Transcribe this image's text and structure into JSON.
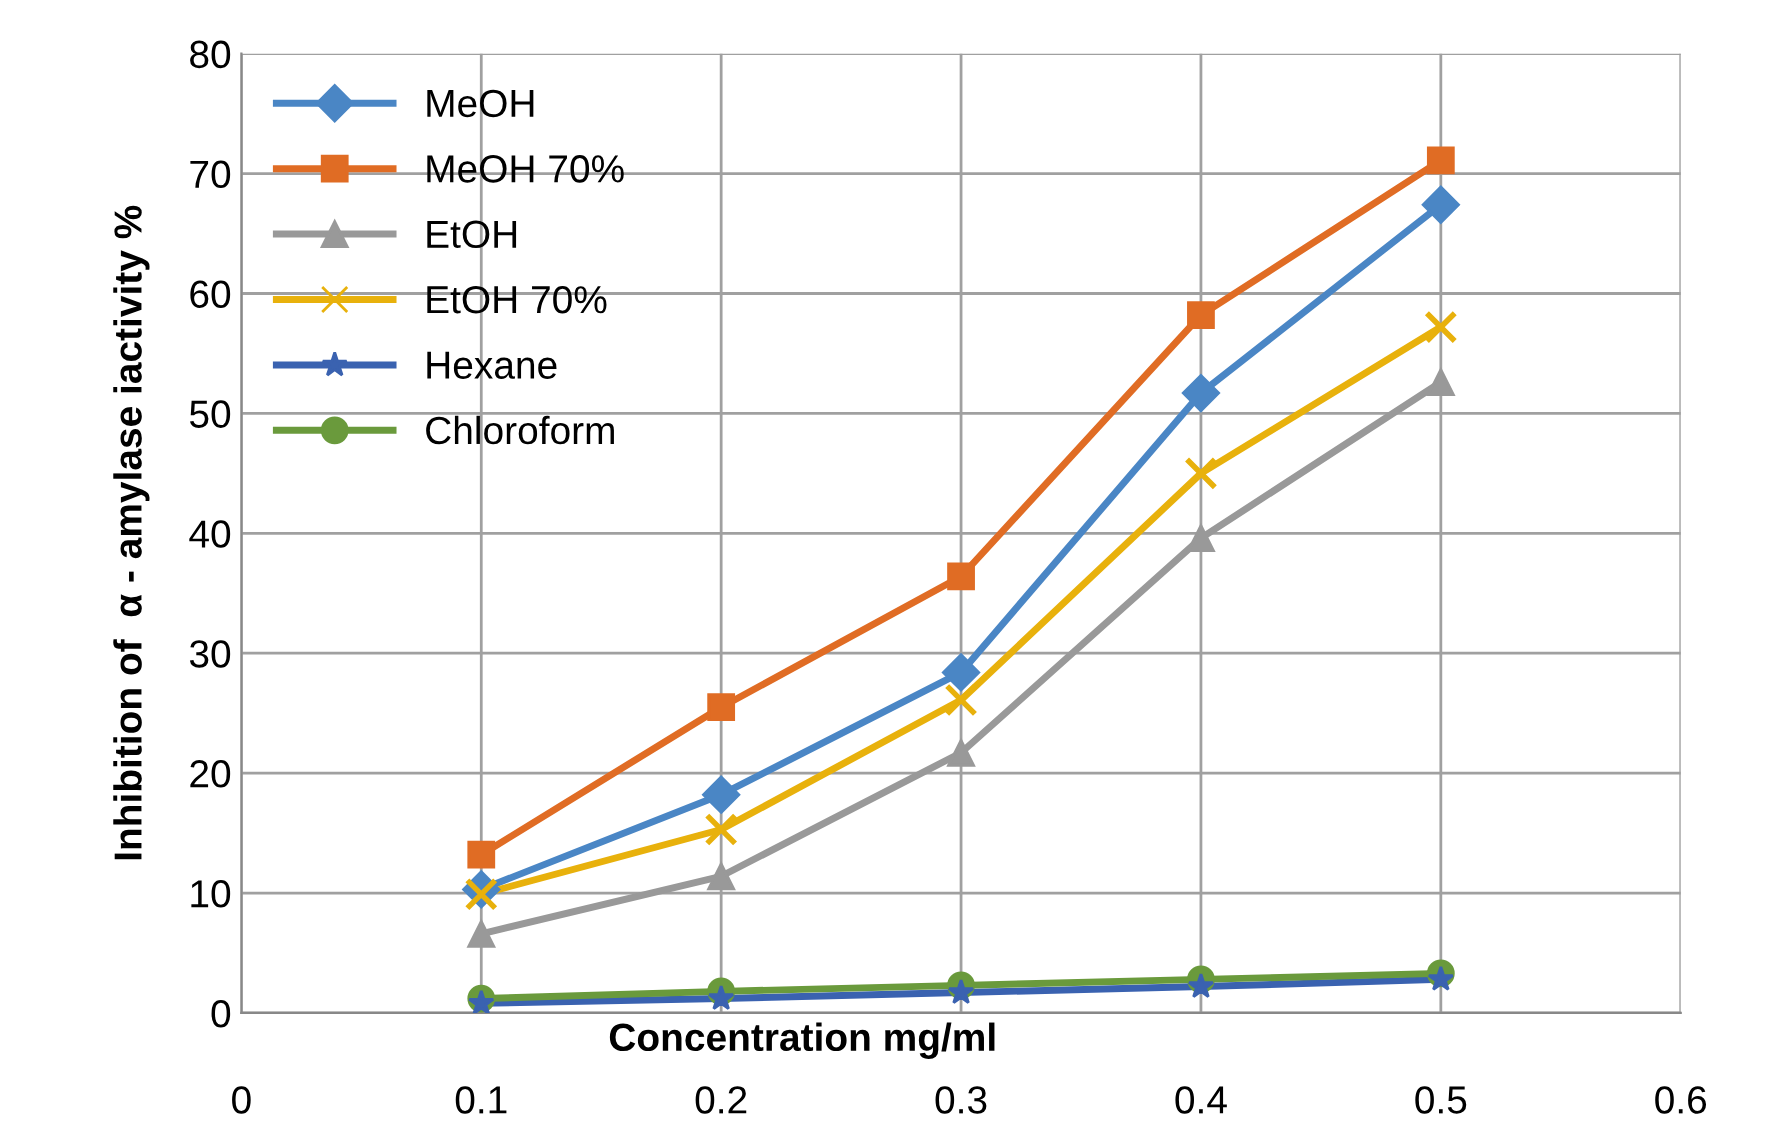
{
  "chart_data": {
    "type": "line",
    "xlabel": "Concentration mg/ml",
    "ylabel": "Inhibition of  α - amylase iactivity %",
    "x": [
      0.1,
      0.2,
      0.3,
      0.4,
      0.5
    ],
    "series": [
      {
        "name": "MeOH",
        "color": "#4a86c5",
        "marker": "diamond",
        "values": [
          10.3,
          18.2,
          28.4,
          51.7,
          67.4
        ]
      },
      {
        "name": "MeOH 70%",
        "color": "#e06c24",
        "marker": "square",
        "values": [
          13.2,
          25.5,
          36.4,
          58.2,
          71.1
        ]
      },
      {
        "name": "EtOH",
        "color": "#999999",
        "marker": "triangle",
        "values": [
          6.6,
          11.4,
          21.7,
          39.6,
          52.6
        ]
      },
      {
        "name": "EtOH 70%",
        "color": "#e8b10c",
        "marker": "cross",
        "values": [
          9.9,
          15.3,
          26.1,
          45.0,
          57.2
        ]
      },
      {
        "name": "Hexane",
        "color": "#3a62b0",
        "marker": "star",
        "values": [
          0.8,
          1.2,
          1.7,
          2.2,
          2.8
        ]
      },
      {
        "name": "Chloroform",
        "color": "#6a9a3c",
        "marker": "circle",
        "values": [
          1.2,
          1.8,
          2.3,
          2.8,
          3.3
        ]
      }
    ],
    "xlim": [
      0,
      0.6
    ],
    "xticks": [
      0,
      0.1,
      0.2,
      0.3,
      0.4,
      0.5,
      0.6
    ],
    "ylim": [
      0,
      80
    ],
    "yticks": [
      0,
      10,
      20,
      30,
      40,
      50,
      60,
      70,
      80
    ],
    "grid": true,
    "legend": "top left",
    "line_style": "solid"
  }
}
